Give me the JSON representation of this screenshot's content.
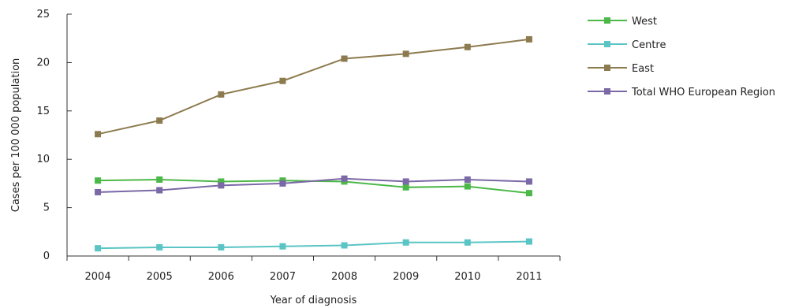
{
  "chart_data": {
    "type": "line",
    "title": "",
    "xlabel": "Year of diagnosis",
    "ylabel": "Cases per 100 000 population",
    "categories": [
      "2004",
      "2005",
      "2006",
      "2007",
      "2008",
      "2009",
      "2010",
      "2011"
    ],
    "yticks": [
      "0",
      "5",
      "10",
      "15",
      "20",
      "25"
    ],
    "ylim": [
      0,
      25
    ],
    "grid": false,
    "legend_position": "right",
    "series": [
      {
        "name": "West",
        "color": "#4cb848",
        "values": [
          7.8,
          7.9,
          7.7,
          7.8,
          7.7,
          7.1,
          7.2,
          6.5
        ]
      },
      {
        "name": "Centre",
        "color": "#5bc4c4",
        "values": [
          0.8,
          0.9,
          0.9,
          1.0,
          1.1,
          1.4,
          1.4,
          1.5
        ]
      },
      {
        "name": "East",
        "color": "#8c7b4e",
        "values": [
          12.6,
          14.0,
          16.7,
          18.1,
          20.4,
          20.9,
          21.6,
          22.4
        ]
      },
      {
        "name": "Total WHO European Region",
        "color": "#7b68a6",
        "values": [
          6.6,
          6.8,
          7.3,
          7.5,
          8.0,
          7.7,
          7.9,
          7.7
        ]
      }
    ]
  }
}
